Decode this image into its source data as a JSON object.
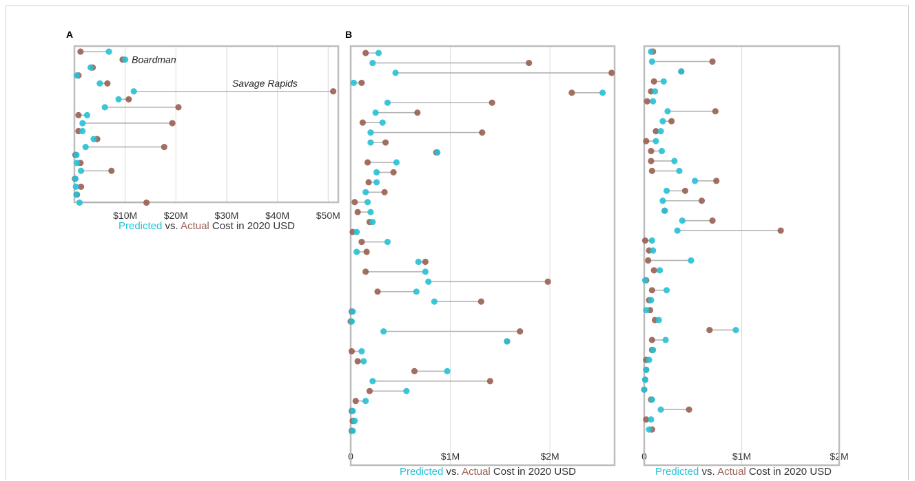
{
  "colors": {
    "predicted": "#27c0d6",
    "actual": "#9a5f52",
    "text": "#333333"
  },
  "chart_data": [
    {
      "panel": "A",
      "type": "dumbbell",
      "xlim": [
        0,
        52
      ],
      "unit": "$M",
      "ticks": [
        10,
        20,
        30,
        40,
        50
      ],
      "tick_labels": [
        "$10M",
        "$20M",
        "$30M",
        "$40M",
        "$50M"
      ],
      "caption": {
        "predicted": "Predicted",
        "vs": " vs. ",
        "actual": "Actual",
        "rest": " Cost in 2020 USD"
      },
      "annotations": [
        {
          "row": 1,
          "x": 10.2,
          "text": "Boardman"
        },
        {
          "row": 4,
          "x": 30,
          "text": "Savage Rapids"
        }
      ],
      "rows": [
        {
          "predicted": 6.8,
          "actual": 1.2
        },
        {
          "predicted": 10.0,
          "actual": 9.5
        },
        {
          "predicted": 3.2,
          "actual": 3.6
        },
        {
          "predicted": 0.5,
          "actual": 0.8
        },
        {
          "predicted": 5.0,
          "actual": 6.5
        },
        {
          "predicted": 11.7,
          "actual": 51.0
        },
        {
          "predicted": 8.7,
          "actual": 10.7
        },
        {
          "predicted": 6.0,
          "actual": 20.5
        },
        {
          "predicted": 2.5,
          "actual": 0.8
        },
        {
          "predicted": 1.6,
          "actual": 19.3
        },
        {
          "predicted": 1.6,
          "actual": 0.8
        },
        {
          "predicted": 3.8,
          "actual": 4.5
        },
        {
          "predicted": 2.2,
          "actual": 17.7
        },
        {
          "predicted": 0.4,
          "actual": 0.2
        },
        {
          "predicted": 0.5,
          "actual": 1.2
        },
        {
          "predicted": 1.3,
          "actual": 7.3
        },
        {
          "predicted": 0.2,
          "actual": 0.1
        },
        {
          "predicted": 0.3,
          "actual": 1.3
        },
        {
          "predicted": 0.4,
          "actual": 0.5
        },
        {
          "predicted": 1.0,
          "actual": 14.2
        }
      ]
    },
    {
      "panel": "B",
      "type": "dumbbell",
      "xlim": [
        0,
        2.65
      ],
      "unit": "$M",
      "ticks": [
        0,
        1,
        2
      ],
      "tick_labels": [
        "0",
        "$1M",
        "$2M"
      ],
      "caption": {
        "predicted": "Predicted",
        "vs": " vs. ",
        "actual": "Actual",
        "rest": " Cost in 2020 USD"
      },
      "rows": [
        {
          "predicted": 0.28,
          "actual": 0.15
        },
        {
          "predicted": 0.22,
          "actual": 1.79
        },
        {
          "predicted": 0.45,
          "actual": 2.62
        },
        {
          "predicted": 0.03,
          "actual": 0.11
        },
        {
          "predicted": 2.53,
          "actual": 2.22
        },
        {
          "predicted": 0.37,
          "actual": 1.42
        },
        {
          "predicted": 0.25,
          "actual": 0.67
        },
        {
          "predicted": 0.32,
          "actual": 0.12
        },
        {
          "predicted": 0.2,
          "actual": 1.32
        },
        {
          "predicted": 0.2,
          "actual": 0.35
        },
        {
          "predicted": 0.87,
          "actual": 0.86
        },
        {
          "predicted": 0.46,
          "actual": 0.17
        },
        {
          "predicted": 0.26,
          "actual": 0.43
        },
        {
          "predicted": 0.26,
          "actual": 0.18
        },
        {
          "predicted": 0.15,
          "actual": 0.34
        },
        {
          "predicted": 0.17,
          "actual": 0.04
        },
        {
          "predicted": 0.2,
          "actual": 0.07
        },
        {
          "predicted": 0.22,
          "actual": 0.19
        },
        {
          "predicted": 0.06,
          "actual": 0.02
        },
        {
          "predicted": 0.37,
          "actual": 0.11
        },
        {
          "predicted": 0.06,
          "actual": 0.16
        },
        {
          "predicted": 0.68,
          "actual": 0.75
        },
        {
          "predicted": 0.75,
          "actual": 0.15
        },
        {
          "predicted": 0.78,
          "actual": 1.98
        },
        {
          "predicted": 0.66,
          "actual": 0.27
        },
        {
          "predicted": 0.84,
          "actual": 1.31
        },
        {
          "predicted": 0.02,
          "actual": 0.01
        },
        {
          "predicted": 0.01,
          "actual": 0.0
        },
        {
          "predicted": 0.33,
          "actual": 1.7
        },
        {
          "predicted": 1.57,
          "actual": 1.57
        },
        {
          "predicted": 0.11,
          "actual": 0.01
        },
        {
          "predicted": 0.13,
          "actual": 0.07
        },
        {
          "predicted": 0.97,
          "actual": 0.64
        },
        {
          "predicted": 0.22,
          "actual": 1.4
        },
        {
          "predicted": 0.56,
          "actual": 0.19
        },
        {
          "predicted": 0.15,
          "actual": 0.05
        },
        {
          "predicted": 0.02,
          "actual": 0.01
        },
        {
          "predicted": 0.04,
          "actual": 0.02
        },
        {
          "predicted": 0.02,
          "actual": 0.01
        }
      ]
    },
    {
      "panel": "",
      "type": "dumbbell",
      "xlim": [
        0,
        2.0
      ],
      "unit": "$M",
      "ticks": [
        0,
        1,
        2
      ],
      "tick_labels": [
        "0",
        "$1M",
        "$2M"
      ],
      "caption": {
        "predicted": "Predicted",
        "vs": " vs. ",
        "actual": "Actual",
        "rest": " Cost in 2020 USD"
      },
      "rows": [
        {
          "predicted": 0.07,
          "actual": 0.09
        },
        {
          "predicted": 0.08,
          "actual": 0.7
        },
        {
          "predicted": 0.38,
          "actual": 0.38
        },
        {
          "predicted": 0.2,
          "actual": 0.1
        },
        {
          "predicted": 0.11,
          "actual": 0.07
        },
        {
          "predicted": 0.09,
          "actual": 0.03
        },
        {
          "predicted": 0.24,
          "actual": 0.73
        },
        {
          "predicted": 0.19,
          "actual": 0.28
        },
        {
          "predicted": 0.17,
          "actual": 0.12
        },
        {
          "predicted": 0.12,
          "actual": 0.02
        },
        {
          "predicted": 0.18,
          "actual": 0.07
        },
        {
          "predicted": 0.31,
          "actual": 0.07
        },
        {
          "predicted": 0.36,
          "actual": 0.08
        },
        {
          "predicted": 0.52,
          "actual": 0.74
        },
        {
          "predicted": 0.23,
          "actual": 0.42
        },
        {
          "predicted": 0.19,
          "actual": 0.59
        },
        {
          "predicted": 0.21,
          "actual": 0.21
        },
        {
          "predicted": 0.39,
          "actual": 0.7
        },
        {
          "predicted": 0.34,
          "actual": 1.4
        },
        {
          "predicted": 0.08,
          "actual": 0.01
        },
        {
          "predicted": 0.09,
          "actual": 0.05
        },
        {
          "predicted": 0.48,
          "actual": 0.04
        },
        {
          "predicted": 0.16,
          "actual": 0.1
        },
        {
          "predicted": 0.01,
          "actual": 0.02
        },
        {
          "predicted": 0.23,
          "actual": 0.08
        },
        {
          "predicted": 0.07,
          "actual": 0.05
        },
        {
          "predicted": 0.02,
          "actual": 0.06
        },
        {
          "predicted": 0.15,
          "actual": 0.11
        },
        {
          "predicted": 0.94,
          "actual": 0.67
        },
        {
          "predicted": 0.22,
          "actual": 0.08
        },
        {
          "predicted": 0.09,
          "actual": 0.08
        },
        {
          "predicted": 0.05,
          "actual": 0.02
        },
        {
          "predicted": 0.02,
          "actual": 0.02
        },
        {
          "predicted": 0.01,
          "actual": 0.01
        },
        {
          "predicted": 0.0,
          "actual": 0.0
        },
        {
          "predicted": 0.08,
          "actual": 0.07
        },
        {
          "predicted": 0.17,
          "actual": 0.46
        },
        {
          "predicted": 0.07,
          "actual": 0.02
        },
        {
          "predicted": 0.05,
          "actual": 0.08
        }
      ]
    }
  ]
}
